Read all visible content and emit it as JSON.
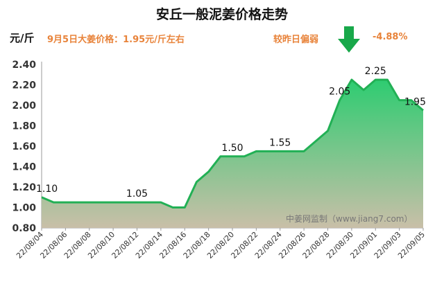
{
  "header": {
    "title": "安丘一般泥姜价格走势",
    "unit": "元/斤",
    "price_text": "9月5日大姜价格：1.95元/斤左右",
    "compare_text": "较昨日偏弱",
    "change_text": "-4.88%",
    "arrow_icon": "down-arrow-icon"
  },
  "colors": {
    "accent_text": "#E8833A",
    "arrow": "#18A84A",
    "line": "#22B055",
    "fill_top": "#2ECC71",
    "fill_bottom": "#C9BFA8"
  },
  "watermark": "中姜网监制（www.jiang7.com）",
  "chart_data": {
    "type": "area",
    "title": "安丘一般泥姜价格走势",
    "ylabel": "元/斤",
    "xlabel": "",
    "ylim": [
      0.8,
      2.4
    ],
    "yticks": [
      "0.80",
      "1.00",
      "1.20",
      "1.40",
      "1.60",
      "1.80",
      "2.00",
      "2.20",
      "2.40"
    ],
    "grid": false,
    "legend": "none",
    "x": [
      "22/08/04",
      "22/08/05",
      "22/08/06",
      "22/08/07",
      "22/08/08",
      "22/08/09",
      "22/08/10",
      "22/08/11",
      "22/08/12",
      "22/08/13",
      "22/08/14",
      "22/08/15",
      "22/08/16",
      "22/08/17",
      "22/08/18",
      "22/08/19",
      "22/08/20",
      "22/08/21",
      "22/08/22",
      "22/08/23",
      "22/08/24",
      "22/08/25",
      "22/08/26",
      "22/08/27",
      "22/08/28",
      "22/08/29",
      "22/08/30",
      "22/08/31",
      "22/09/01",
      "22/09/02",
      "22/09/03",
      "22/09/04",
      "22/09/05"
    ],
    "xtick_labels": [
      "22/08/04",
      "22/08/06",
      "22/08/08",
      "22/08/10",
      "22/08/12",
      "22/08/14",
      "22/08/16",
      "22/08/18",
      "22/08/20",
      "22/08/22",
      "22/08/24",
      "22/08/26",
      "22/08/28",
      "22/08/30",
      "22/09/01",
      "22/09/03",
      "22/09/05"
    ],
    "values": [
      1.1,
      1.05,
      1.05,
      1.05,
      1.05,
      1.05,
      1.05,
      1.05,
      1.05,
      1.05,
      1.05,
      1.0,
      1.0,
      1.25,
      1.35,
      1.5,
      1.5,
      1.5,
      1.55,
      1.55,
      1.55,
      1.55,
      1.55,
      1.65,
      1.75,
      2.05,
      2.25,
      2.15,
      2.25,
      2.25,
      2.05,
      2.05,
      1.95
    ],
    "data_labels": [
      {
        "x": "22/08/04",
        "text": "1.10"
      },
      {
        "x": "22/08/12",
        "text": "1.05"
      },
      {
        "x": "22/08/20",
        "text": "1.50"
      },
      {
        "x": "22/08/24",
        "text": "1.55"
      },
      {
        "x": "22/08/29",
        "text": "2.05"
      },
      {
        "x": "22/09/01",
        "text": "2.25"
      },
      {
        "x": "22/09/05",
        "text": "1.95"
      }
    ]
  }
}
